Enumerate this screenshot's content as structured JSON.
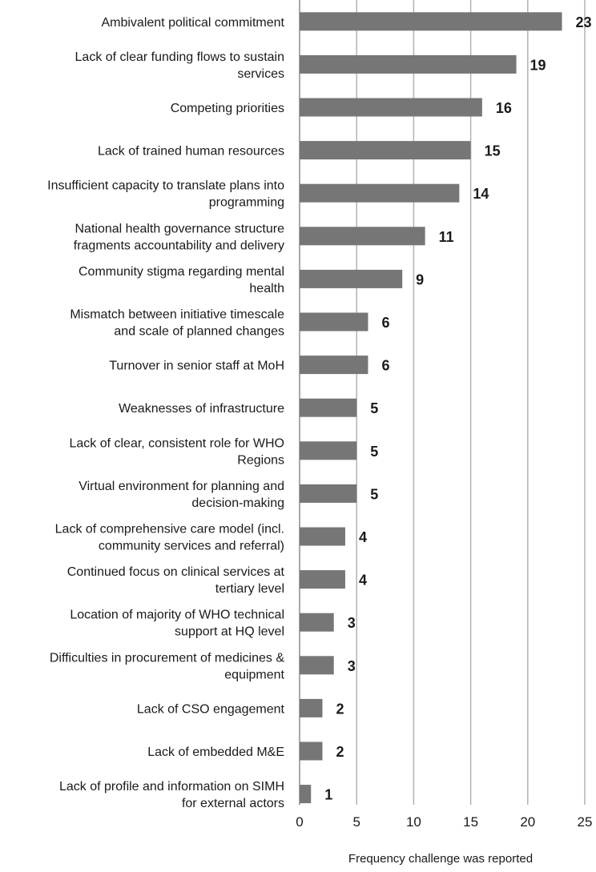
{
  "chart_data": {
    "type": "bar",
    "orientation": "horizontal",
    "categories": [
      [
        "Ambivalent political commitment"
      ],
      [
        "Lack of clear funding flows to sustain",
        "services"
      ],
      [
        "Competing priorities"
      ],
      [
        "Lack of trained human resources"
      ],
      [
        "Insufficient capacity to translate plans into",
        "programming"
      ],
      [
        "National health governance structure",
        "fragments accountability and delivery"
      ],
      [
        "Community stigma regarding mental",
        "health"
      ],
      [
        "Mismatch between initiative timescale",
        "and scale of planned changes"
      ],
      [
        "Turnover in senior staff at MoH"
      ],
      [
        "Weaknesses of infrastructure"
      ],
      [
        "Lack of clear, consistent role for WHO",
        "Regions"
      ],
      [
        "Virtual environment for planning and",
        "decision-making"
      ],
      [
        "Lack of comprehensive care model (incl.",
        "community services and referral)"
      ],
      [
        "Continued focus on clinical services at",
        "tertiary level"
      ],
      [
        "Location of majority of WHO technical",
        "support at HQ level"
      ],
      [
        "Difficulties in procurement of medicines &",
        "equipment"
      ],
      [
        "Lack of CSO engagement"
      ],
      [
        "Lack of embedded M&E"
      ],
      [
        "Lack of profile and information on SIMH",
        "for external actors"
      ]
    ],
    "values": [
      23,
      19,
      16,
      15,
      14,
      11,
      9,
      6,
      6,
      5,
      5,
      5,
      4,
      4,
      3,
      3,
      2,
      2,
      1
    ],
    "xlabel": "Frequency challenge was reported",
    "xlim": [
      0,
      25
    ],
    "xticks": [
      0,
      5,
      10,
      15,
      20,
      25
    ],
    "grid": "vertical",
    "colors": {
      "bar": "#767676",
      "grid": "#b3b3b3",
      "text": "#1a1a1a"
    }
  }
}
